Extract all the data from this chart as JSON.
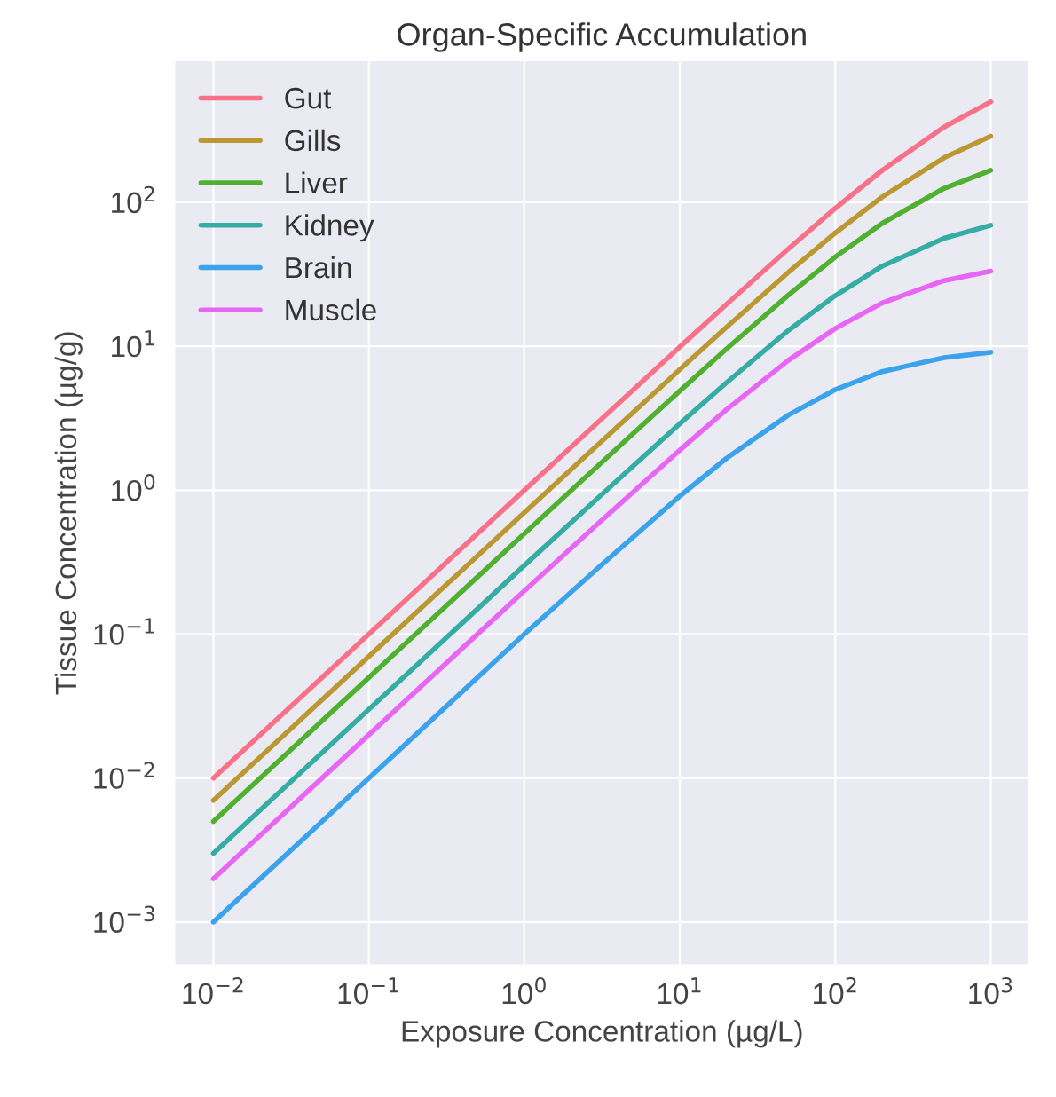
{
  "chart_data": {
    "type": "line",
    "title": "Organ-Specific Accumulation",
    "xlabel": "Exposure Concentration (µg/L)",
    "ylabel": "Tissue Concentration (µg/g)",
    "x": [
      0.01,
      0.1,
      1,
      3,
      10,
      20,
      50,
      100,
      200,
      500,
      1000
    ],
    "series": [
      {
        "name": "Gut",
        "color": "#f77189",
        "values": [
          0.01,
          0.1,
          1.0,
          2.99,
          9.9,
          19.6,
          47.6,
          90.9,
          166.7,
          333,
          500
        ]
      },
      {
        "name": "Gills",
        "color": "#bb9832",
        "values": [
          0.007,
          0.07,
          0.7,
          2.09,
          6.9,
          13.6,
          32.7,
          61.3,
          108.9,
          204,
          288
        ]
      },
      {
        "name": "Liver",
        "color": "#50b131",
        "values": [
          0.005,
          0.05,
          0.5,
          1.49,
          4.9,
          9.6,
          22.7,
          41.7,
          71.4,
          125,
          167
        ]
      },
      {
        "name": "Kidney",
        "color": "#36ada4",
        "values": [
          0.003,
          0.03,
          0.3,
          0.89,
          2.9,
          5.6,
          12.9,
          22.5,
          36,
          56.3,
          69.2
        ]
      },
      {
        "name": "Brain",
        "color": "#3ba3ec",
        "values": [
          0.001,
          0.01,
          0.1,
          0.29,
          0.91,
          1.67,
          3.33,
          5,
          6.67,
          8.33,
          9.09
        ]
      },
      {
        "name": "Muscle",
        "color": "#e866f4",
        "values": [
          0.002,
          0.02,
          0.2,
          0.59,
          1.9,
          3.64,
          8,
          13.3,
          20,
          28.6,
          33.3
        ]
      }
    ],
    "log": "xy",
    "xlim": [
      0.0056,
      1778
    ],
    "ylim": [
      0.0005,
      970
    ],
    "xticks": [
      {
        "value": 0.01,
        "label": "10$^{−2}$"
      },
      {
        "value": 0.1,
        "label": "10$^{−1}$"
      },
      {
        "value": 1,
        "label": "10$^{0}$"
      },
      {
        "value": 10,
        "label": "10$^{1}$"
      },
      {
        "value": 100,
        "label": "10$^{2}$"
      },
      {
        "value": 1000,
        "label": "10$^{3}$"
      }
    ],
    "yticks": [
      {
        "value": 0.001,
        "label": "10$^{−3}$"
      },
      {
        "value": 0.01,
        "label": "10$^{−2}$"
      },
      {
        "value": 0.1,
        "label": "10$^{−1}$"
      },
      {
        "value": 1,
        "label": "10$^{0}$"
      },
      {
        "value": 10,
        "label": "10$^{1}$"
      },
      {
        "value": 100,
        "label": "10$^{2}$"
      }
    ],
    "grid": true,
    "legend": "top left",
    "line_style": "solid"
  }
}
